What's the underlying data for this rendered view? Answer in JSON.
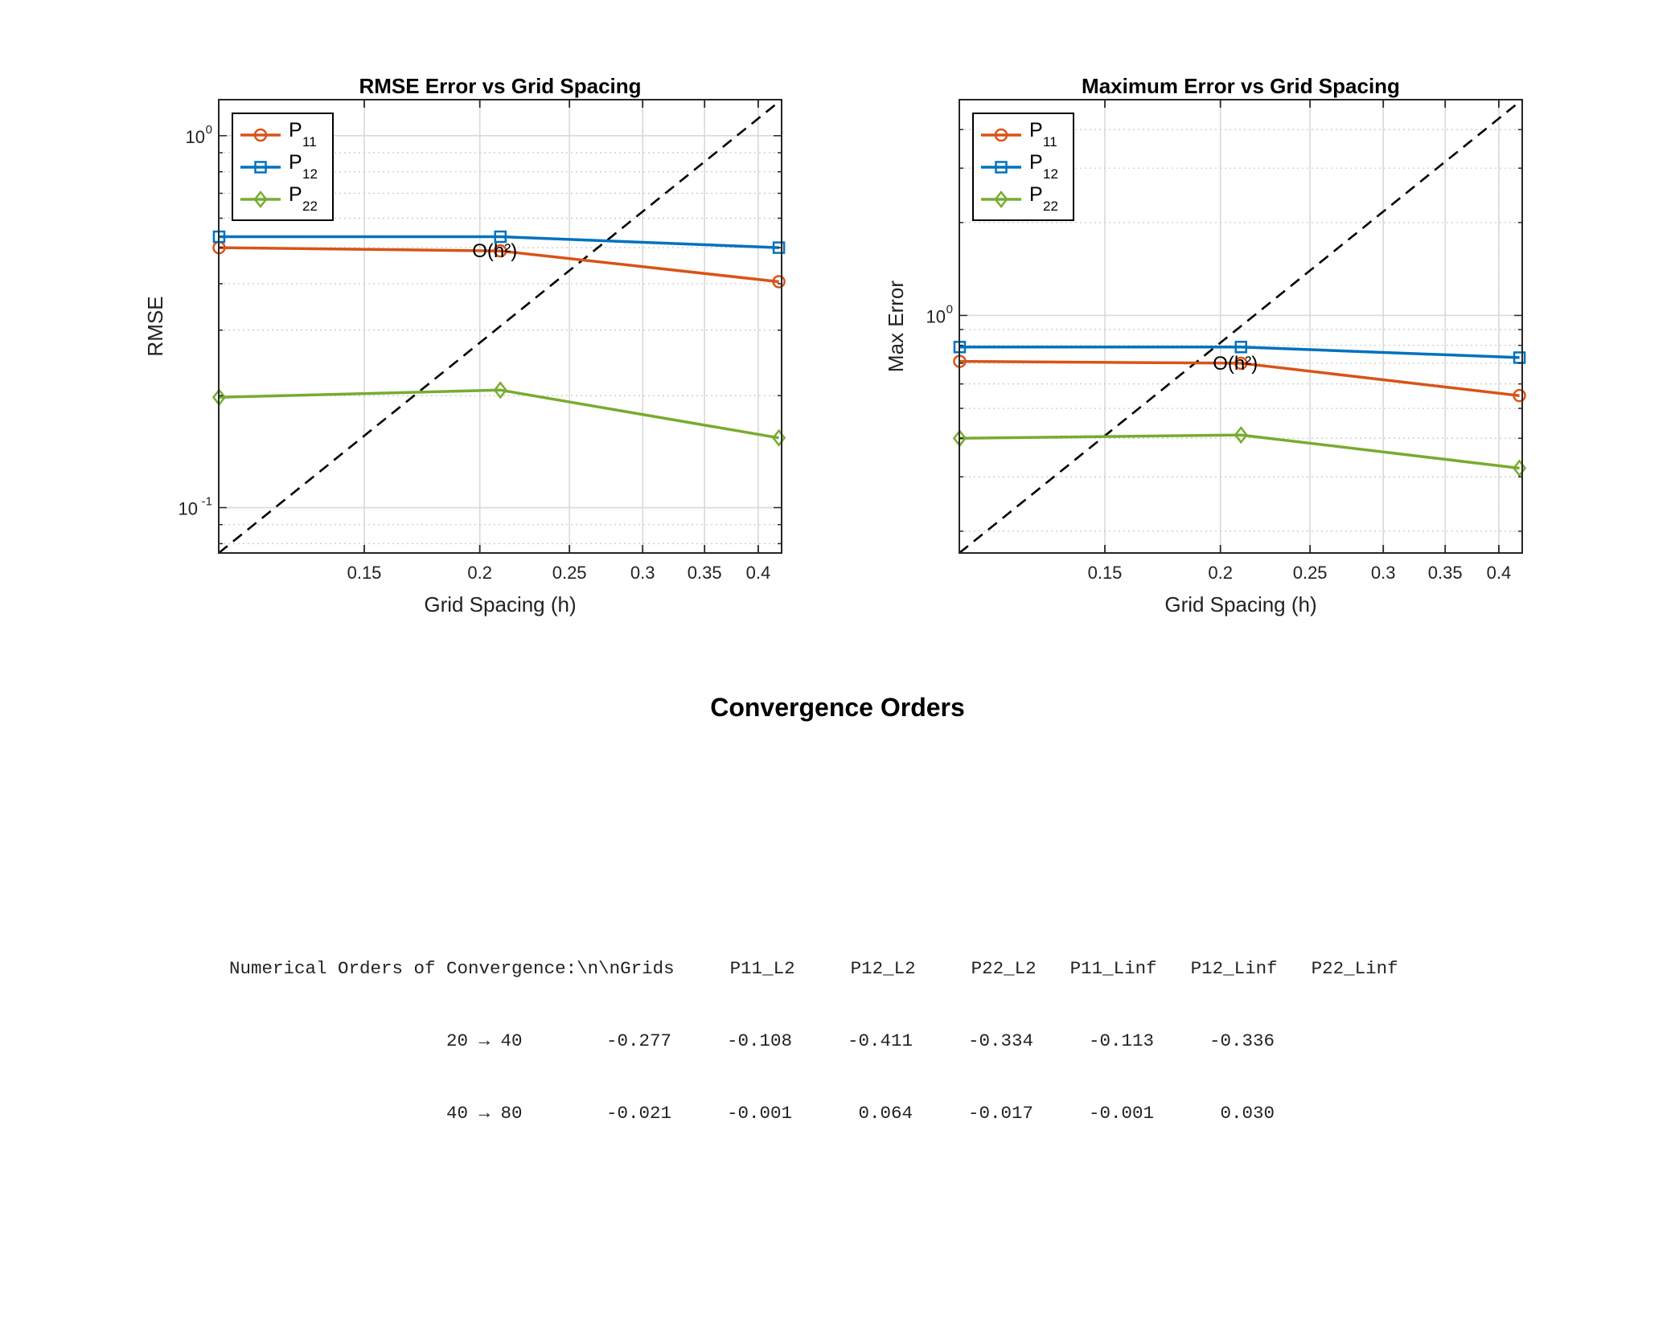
{
  "colors": {
    "P11": "#D95319",
    "P12": "#0072BD",
    "P22": "#77AC30",
    "reference": "#000000",
    "grid": "#d9d9d9",
    "axes": "#262626"
  },
  "chart_data": [
    {
      "type": "line",
      "title": "RMSE Error vs Grid Spacing",
      "xlabel": "Grid Spacing (h)",
      "ylabel": "RMSE",
      "xscale": "log",
      "yscale": "log",
      "xlim": [
        0.1044,
        0.424
      ],
      "ylim": [
        0.0755,
        1.25
      ],
      "xticks": [
        0.15,
        0.2,
        0.25,
        0.3,
        0.35,
        0.4
      ],
      "xtick_labels": [
        "0.15",
        "0.2",
        "0.25",
        "0.3",
        "0.35",
        "0.4"
      ],
      "yticks": [
        {
          "value": 0.1,
          "base": "10",
          "exp": "-1"
        },
        {
          "value": 1.0,
          "base": "10",
          "exp": "0"
        }
      ],
      "grid": true,
      "legend_placement": "top-left",
      "x": [
        0.1045,
        0.2105,
        0.4211
      ],
      "series": [
        {
          "name": "P11",
          "name_base": "P",
          "name_sub": "11",
          "color_key": "P11",
          "marker": "circle",
          "values": [
            0.5,
            0.49,
            0.405
          ]
        },
        {
          "name": "P12",
          "name_base": "P",
          "name_sub": "12",
          "color_key": "P12",
          "marker": "square",
          "values": [
            0.535,
            0.535,
            0.5
          ]
        },
        {
          "name": "P22",
          "name_base": "P",
          "name_sub": "22",
          "color_key": "P22",
          "marker": "diamond",
          "values": [
            0.198,
            0.207,
            0.154
          ]
        }
      ],
      "reference_line": {
        "x": [
          0.1044,
          0.424
        ],
        "y": [
          0.0755,
          1.25
        ],
        "style": "dashed"
      },
      "annotation": {
        "text": "O(h²)",
        "x": 0.2105,
        "y": 0.49
      }
    },
    {
      "type": "line",
      "title": "Maximum Error vs Grid Spacing",
      "xlabel": "Grid Spacing (h)",
      "ylabel": "Max Error",
      "xscale": "log",
      "yscale": "log",
      "xlim": [
        0.1044,
        0.424
      ],
      "ylim": [
        0.17,
        5.0
      ],
      "xticks": [
        0.15,
        0.2,
        0.25,
        0.3,
        0.35,
        0.4
      ],
      "xtick_labels": [
        "0.15",
        "0.2",
        "0.25",
        "0.3",
        "0.35",
        "0.4"
      ],
      "yticks": [
        {
          "value": 1.0,
          "base": "10",
          "exp": "0"
        }
      ],
      "grid": true,
      "legend_placement": "top-left",
      "x": [
        0.1045,
        0.2105,
        0.4211
      ],
      "series": [
        {
          "name": "P11",
          "name_base": "P",
          "name_sub": "11",
          "color_key": "P11",
          "marker": "circle",
          "values": [
            0.71,
            0.7,
            0.55
          ]
        },
        {
          "name": "P12",
          "name_base": "P",
          "name_sub": "12",
          "color_key": "P12",
          "marker": "square",
          "values": [
            0.79,
            0.79,
            0.73
          ]
        },
        {
          "name": "P22",
          "name_base": "P",
          "name_sub": "22",
          "color_key": "P22",
          "marker": "diamond",
          "values": [
            0.4,
            0.41,
            0.32
          ]
        }
      ],
      "reference_line": {
        "x": [
          0.1044,
          0.424
        ],
        "y": [
          0.17,
          5.0
        ],
        "style": "dashed"
      },
      "annotation": {
        "text": "O(h²)",
        "x": 0.2105,
        "y": 0.7
      }
    }
  ],
  "section_title": "Convergence Orders",
  "orders_table": {
    "header_prefix": "Numerical Orders of Convergence:\\n\\nGrids",
    "columns": [
      "P11_L2",
      "P12_L2",
      "P22_L2",
      "P11_Linf",
      "P12_Linf",
      "P22_Linf"
    ],
    "rows": [
      {
        "grids": "20 → 40",
        "values": [
          "-0.277",
          "-0.108",
          "-0.411",
          "-0.334",
          "-0.113",
          "-0.336"
        ]
      },
      {
        "grids": "40 → 80",
        "values": [
          "-0.021",
          "-0.001",
          "0.064",
          "-0.017",
          "-0.001",
          "0.030"
        ]
      }
    ]
  }
}
